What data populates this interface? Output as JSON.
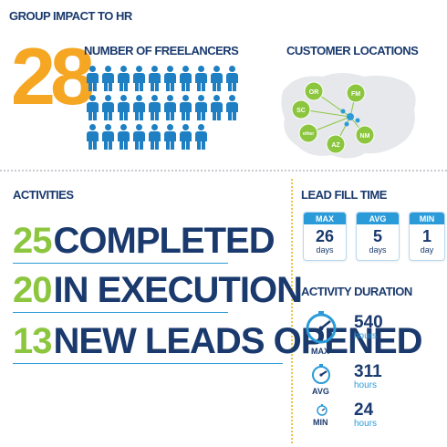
{
  "header": {
    "title": "GROUP IMPACT TO HR"
  },
  "freelancers": {
    "count": "28",
    "label": "NUMBER OF FREELANCERS",
    "icon": "person-icon",
    "icon_count": 28
  },
  "customers": {
    "label": "CUSTOMER LOCATIONS",
    "locations": [
      "OR",
      "FM",
      "SC",
      "NM",
      "AZ",
      "other"
    ]
  },
  "activities": {
    "label": "ACTIVITIES",
    "items": [
      {
        "number": "25",
        "text": "COMPLETED"
      },
      {
        "number": "20",
        "text": "IN EXECUTION"
      },
      {
        "number": "13",
        "text": "NEW LEADS OPENED"
      }
    ]
  },
  "lead_fill_time": {
    "label": "LEAD FILL TIME",
    "cards": [
      {
        "header": "MAX",
        "value": "26",
        "unit": "days"
      },
      {
        "header": "AVG",
        "value": "5",
        "unit": "days"
      },
      {
        "header": "MIN",
        "value": "1",
        "unit": "day"
      }
    ]
  },
  "activity_duration": {
    "label": "ACTIVITY DURATION",
    "items": [
      {
        "label": "MAX",
        "value": "540",
        "unit": "hours",
        "icon": "speedometer-icon"
      },
      {
        "label": "AVG",
        "value": "311",
        "unit": "hours",
        "icon": "speedometer-icon"
      },
      {
        "label": "MIN",
        "value": "24",
        "unit": "hours",
        "icon": "speedometer-icon"
      }
    ]
  },
  "colors": {
    "navy": "#1a3a6e",
    "orange": "#f5a623",
    "green": "#8cc63f",
    "blue": "#2a9bd8"
  }
}
